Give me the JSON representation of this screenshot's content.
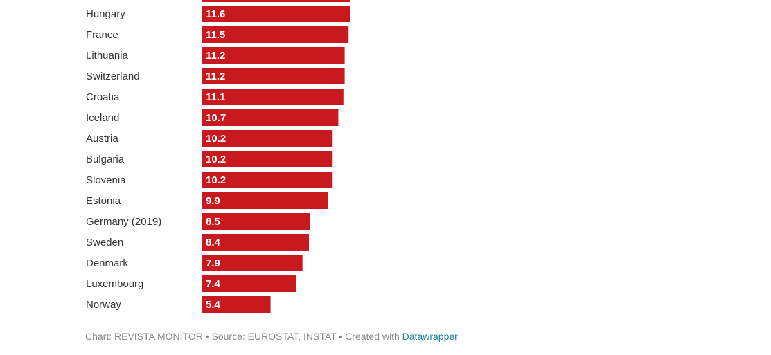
{
  "chart_data": {
    "type": "bar",
    "orientation": "horizontal",
    "bar_color": "#c8191e",
    "categories": [
      "Hungary",
      "France",
      "Lithuania",
      "Switzerland",
      "Croatia",
      "Iceland",
      "Austria",
      "Bulgaria",
      "Slovenia",
      "Estonia",
      "Germany (2019)",
      "Sweden",
      "Denmark",
      "Luxembourg",
      "Norway"
    ],
    "values": [
      11.6,
      11.5,
      11.2,
      11.2,
      11.1,
      10.7,
      10.2,
      10.2,
      10.2,
      9.9,
      8.5,
      8.4,
      7.9,
      7.4,
      5.4
    ],
    "value_labels": [
      "11.6",
      "11.5",
      "11.2",
      "11.2",
      "11.1",
      "10.7",
      "10.2",
      "10.2",
      "10.2",
      "9.9",
      "8.5",
      "8.4",
      "7.9",
      "7.4",
      "5.4"
    ]
  },
  "footer": {
    "credit": "Chart: REVISTA MONITOR • Source: EUROSTAT, INSTAT • Created with ",
    "link_text": "Datawrapper",
    "link_color": "#1d81a2"
  }
}
